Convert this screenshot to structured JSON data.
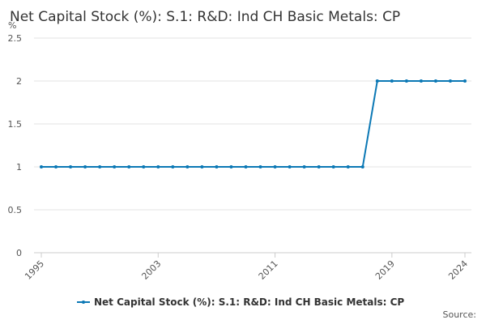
{
  "chart_data": {
    "type": "line",
    "title": "Net Capital Stock (%): S.1: R&D: Ind CH Basic Metals: CP",
    "y_unit": "%",
    "source": "Source:",
    "x": [
      1995,
      1996,
      1997,
      1998,
      1999,
      2000,
      2001,
      2002,
      2003,
      2004,
      2005,
      2006,
      2007,
      2008,
      2009,
      2010,
      2011,
      2012,
      2013,
      2014,
      2015,
      2016,
      2017,
      2018,
      2019,
      2020,
      2021,
      2022,
      2023,
      2024
    ],
    "series": [
      {
        "name": "Net Capital Stock (%): S.1: R&D: Ind CH Basic Metals: CP",
        "color": "#0b78b5",
        "values": [
          1,
          1,
          1,
          1,
          1,
          1,
          1,
          1,
          1,
          1,
          1,
          1,
          1,
          1,
          1,
          1,
          1,
          1,
          1,
          1,
          1,
          1,
          1,
          2,
          2,
          2,
          2,
          2,
          2,
          2
        ]
      }
    ],
    "xlim": [
      1995,
      2024
    ],
    "xticks": [
      1995,
      2003,
      2011,
      2019,
      2024
    ],
    "ylim": [
      0,
      2.5
    ],
    "yticks": [
      0,
      0.5,
      1,
      1.5,
      2,
      2.5
    ],
    "grid": true
  }
}
